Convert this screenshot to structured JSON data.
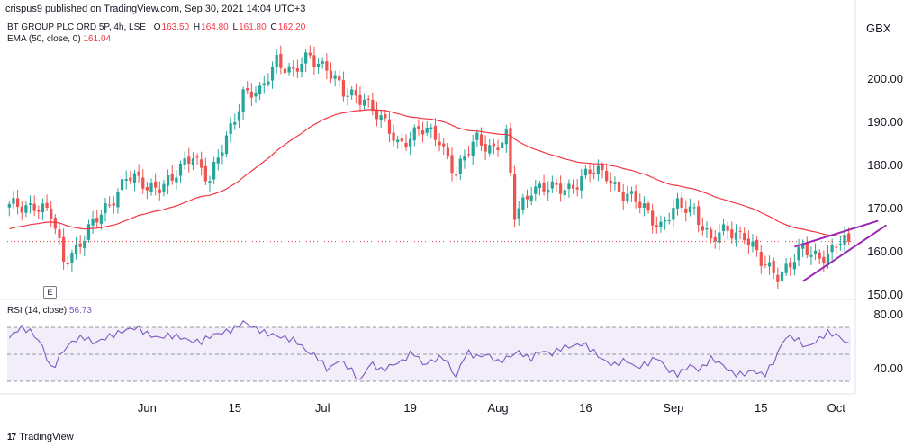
{
  "header": "crispus9 published on TradingView.com, Sep 30, 2021 14:04 UTC+3",
  "symbol_legend": {
    "name": "BT GROUP PLC ORD 5P, 4h, LSE",
    "o_label": "O",
    "o": "163.50",
    "h_label": "H",
    "h": "164.80",
    "l_label": "L",
    "l": "161.80",
    "c_label": "C",
    "c": "162.20"
  },
  "ema_legend": {
    "label": "EMA (50, close, 0)",
    "value": "161.04"
  },
  "rsi_legend": {
    "label": "RSI (14, close)",
    "value": "56.73"
  },
  "currency_unit": "GBX",
  "earnings_badge": "E",
  "watermark": "TradingView",
  "colors": {
    "up": "#26a69a",
    "down": "#ef5350",
    "ema": "#f23645",
    "rsi": "#7e57c2",
    "rsi_band": "#ede7f6",
    "wedge": "#9c27b0",
    "last_price": "#f23645"
  },
  "chart_data": [
    {
      "type": "candlestick",
      "title": "BT GROUP PLC ORD 5P, 4h, LSE",
      "x_ticks": [
        "Jun",
        "15",
        "Jul",
        "19",
        "Aug",
        "16",
        "Sep",
        "15",
        "Oct"
      ],
      "y_ticks": [
        "150.00",
        "160.00",
        "170.00",
        "180.00",
        "190.00",
        "200.00"
      ],
      "ylim": [
        149,
        214
      ],
      "unit": "GBX",
      "grid": false,
      "price_path": [
        {
          "i": 0,
          "v": 170
        },
        {
          "i": 6,
          "v": 171
        },
        {
          "i": 10,
          "v": 168
        },
        {
          "i": 13,
          "v": 158
        },
        {
          "i": 18,
          "v": 163
        },
        {
          "i": 23,
          "v": 170
        },
        {
          "i": 28,
          "v": 177
        },
        {
          "i": 33,
          "v": 175
        },
        {
          "i": 39,
          "v": 176
        },
        {
          "i": 44,
          "v": 183
        },
        {
          "i": 48,
          "v": 176
        },
        {
          "i": 52,
          "v": 186
        },
        {
          "i": 56,
          "v": 197
        },
        {
          "i": 60,
          "v": 196
        },
        {
          "i": 64,
          "v": 205
        },
        {
          "i": 68,
          "v": 201
        },
        {
          "i": 72,
          "v": 205
        },
        {
          "i": 76,
          "v": 203
        },
        {
          "i": 80,
          "v": 196
        },
        {
          "i": 85,
          "v": 196
        },
        {
          "i": 89,
          "v": 190
        },
        {
          "i": 93,
          "v": 185
        },
        {
          "i": 98,
          "v": 188
        },
        {
          "i": 103,
          "v": 186
        },
        {
          "i": 107,
          "v": 178
        },
        {
          "i": 112,
          "v": 186
        },
        {
          "i": 116,
          "v": 184
        },
        {
          "i": 119,
          "v": 186
        },
        {
          "i": 121,
          "v": 168
        },
        {
          "i": 125,
          "v": 175
        },
        {
          "i": 130,
          "v": 174
        },
        {
          "i": 134,
          "v": 175
        },
        {
          "i": 139,
          "v": 178
        },
        {
          "i": 143,
          "v": 178
        },
        {
          "i": 147,
          "v": 173
        },
        {
          "i": 152,
          "v": 170
        },
        {
          "i": 156,
          "v": 166
        },
        {
          "i": 160,
          "v": 170
        },
        {
          "i": 164,
          "v": 170
        },
        {
          "i": 168,
          "v": 162
        },
        {
          "i": 172,
          "v": 165
        },
        {
          "i": 176,
          "v": 164
        },
        {
          "i": 180,
          "v": 157
        },
        {
          "i": 184,
          "v": 155
        },
        {
          "i": 187,
          "v": 157
        },
        {
          "i": 190,
          "v": 160
        },
        {
          "i": 194,
          "v": 159
        },
        {
          "i": 197,
          "v": 160
        },
        {
          "i": 199,
          "v": 162
        },
        {
          "i": 201,
          "v": 162
        }
      ],
      "ema": {
        "name": "EMA (50, close, 0)",
        "last": 161.04
      },
      "last_price": 162.2,
      "annotations": [
        "rising wedge: upper line 161 → 167",
        "rising wedge: lower line 153 → 166"
      ]
    },
    {
      "type": "line",
      "title": "RSI (14, close)",
      "y_ticks": [
        "40.00",
        "80.00"
      ],
      "ylim": [
        22,
        90
      ],
      "bands": [
        30,
        50,
        70
      ],
      "last": 56.73,
      "series": [
        {
          "name": "RSI (14, close)",
          "values": [
            62,
            70,
            67,
            58,
            38,
            52,
            60,
            63,
            58,
            62,
            65,
            68,
            70,
            65,
            62,
            64,
            63,
            60,
            59,
            64,
            66,
            68,
            74,
            70,
            66,
            64,
            62,
            60,
            52,
            48,
            38,
            46,
            40,
            30,
            44,
            38,
            42,
            45,
            52,
            42,
            46,
            48,
            32,
            52,
            48,
            50,
            44,
            48,
            52,
            46,
            53,
            50,
            55,
            56,
            58,
            52,
            45,
            42,
            46,
            40,
            43,
            48,
            38,
            35,
            42,
            38,
            47,
            43,
            36,
            35,
            38,
            34,
            45,
            63,
            62,
            55,
            60,
            66,
            64,
            57
          ]
        }
      ]
    }
  ]
}
